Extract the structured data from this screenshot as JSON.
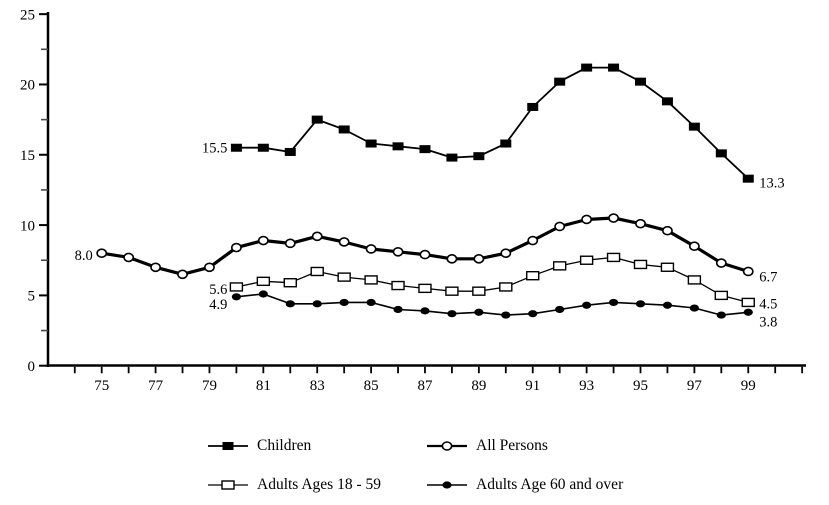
{
  "chart_data": {
    "type": "line",
    "title": "",
    "xlabel": "",
    "ylabel": "",
    "grid": false,
    "colors": {
      "line": "#000000",
      "background": "#ffffff"
    },
    "y_axis": {
      "min": 0,
      "max": 25,
      "major_ticks": [
        0,
        5,
        10,
        15,
        20,
        25
      ],
      "major_tick_labels": [
        "0",
        "5",
        "10",
        "15",
        "20",
        "25"
      ],
      "minor_ticks": [
        2.5,
        7.5,
        12.5,
        17.5,
        22.5
      ]
    },
    "x_axis": {
      "first_tick_year": 74,
      "last_tick_year": 101,
      "label_years": [
        75,
        77,
        79,
        81,
        83,
        85,
        87,
        89,
        91,
        93,
        95,
        97,
        99
      ],
      "tick_labels": [
        "75",
        "77",
        "79",
        "81",
        "83",
        "85",
        "87",
        "89",
        "91",
        "93",
        "95",
        "97",
        "99"
      ]
    },
    "series": [
      {
        "name": "Children",
        "marker": "filled-square",
        "start_year": 80,
        "values": [
          15.5,
          15.5,
          15.2,
          17.5,
          16.8,
          15.8,
          15.6,
          15.4,
          14.8,
          14.9,
          15.8,
          18.4,
          20.2,
          21.2,
          21.2,
          20.2,
          18.8,
          17.0,
          15.1,
          13.3
        ],
        "first_value_label": "15.5",
        "last_value_label": "13.3"
      },
      {
        "name": "All Persons",
        "marker": "open-circle",
        "start_year": 75,
        "values": [
          8.0,
          7.7,
          7.0,
          6.5,
          7.0,
          8.4,
          8.9,
          8.7,
          9.2,
          8.8,
          8.3,
          8.1,
          7.9,
          7.6,
          7.6,
          8.0,
          8.9,
          9.9,
          10.4,
          10.5,
          10.1,
          9.6,
          8.5,
          7.3,
          6.7
        ],
        "first_value_label": "8.0",
        "last_value_label": "6.7"
      },
      {
        "name": "Adults Ages 18 - 59",
        "marker": "open-square",
        "start_year": 80,
        "values": [
          5.6,
          6.0,
          5.9,
          6.7,
          6.3,
          6.1,
          5.7,
          5.5,
          5.3,
          5.3,
          5.6,
          6.4,
          7.1,
          7.5,
          7.7,
          7.2,
          7.0,
          6.1,
          5.0,
          4.5
        ],
        "first_value_label": "5.6",
        "last_value_label": "4.5"
      },
      {
        "name": "Adults Age 60 and over",
        "marker": "filled-circle",
        "start_year": 80,
        "values": [
          4.9,
          5.1,
          4.4,
          4.4,
          4.5,
          4.5,
          4.0,
          3.9,
          3.7,
          3.8,
          3.6,
          3.7,
          4.0,
          4.3,
          4.5,
          4.4,
          4.3,
          4.1,
          3.6,
          3.8
        ],
        "first_value_label": "4.9",
        "last_value_label": "3.8"
      }
    ],
    "legend": {
      "position": "bottom",
      "columns": 2,
      "order": [
        "Children",
        "All Persons",
        "Adults Ages 18 - 59",
        "Adults Age 60 and over"
      ]
    }
  }
}
